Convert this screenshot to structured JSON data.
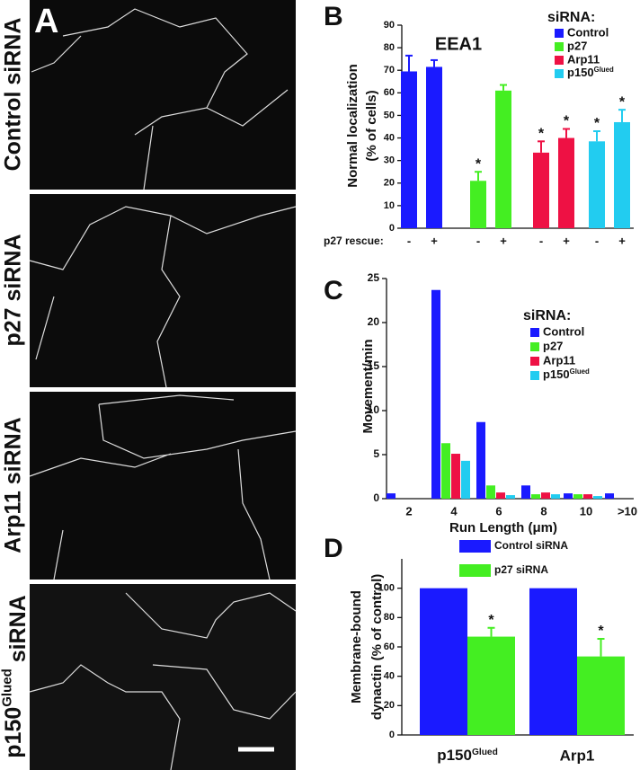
{
  "panel_a": {
    "label": "A",
    "rows": [
      "Control siRNA",
      "p27 siRNA",
      "Arp11 siRNA",
      "p150Glued siRNA"
    ]
  },
  "chart_data": [
    {
      "type": "bar",
      "panel": "B",
      "group_by": "series",
      "title": "EEA1",
      "ylabel": [
        "Normal localization",
        "(% of cells)"
      ],
      "x_label": "p27 rescue:",
      "categories": [
        "-",
        "+"
      ],
      "ylim": [
        0,
        90
      ],
      "yticks": [
        0,
        10,
        20,
        30,
        40,
        50,
        60,
        70,
        80,
        90
      ],
      "legend_title": "siRNA:",
      "significance_label": "*",
      "series": [
        {
          "name": "Control",
          "color": "#1a1aff",
          "values": [
            69.5,
            71.5
          ],
          "errors": [
            7,
            3
          ],
          "significant": [
            false,
            false
          ]
        },
        {
          "name": "p27",
          "color": "#44ee22",
          "values": [
            21,
            61
          ],
          "errors": [
            4,
            2.5
          ],
          "significant": [
            true,
            false
          ]
        },
        {
          "name": "Arp11",
          "color": "#ee1144",
          "values": [
            33.5,
            40
          ],
          "errors": [
            5,
            4
          ],
          "significant": [
            true,
            true
          ]
        },
        {
          "name": "p150Glued",
          "color": "#22ccf0",
          "values": [
            38.5,
            47
          ],
          "errors": [
            4.5,
            5.5
          ],
          "significant": [
            true,
            true
          ]
        }
      ]
    },
    {
      "type": "bar",
      "panel": "C",
      "group_by": "category",
      "ylabel": [
        "Movement/min"
      ],
      "xlabel": "Run Length (μm)",
      "categories": [
        "2",
        "4",
        "6",
        "8",
        "10",
        ">10"
      ],
      "ylim": [
        0,
        25
      ],
      "yticks": [
        0,
        5,
        10,
        15,
        20,
        25
      ],
      "legend_title": "siRNA:",
      "series": [
        {
          "name": "Control",
          "color": "#1a1aff",
          "values": [
            0.6,
            23.7,
            8.7,
            1.5,
            0.6,
            0.6
          ]
        },
        {
          "name": "p27",
          "color": "#44ee22",
          "values": [
            0,
            6.3,
            1.5,
            0.5,
            0.5,
            0
          ]
        },
        {
          "name": "Arp11",
          "color": "#ee1144",
          "values": [
            0,
            5.1,
            0.7,
            0.7,
            0.5,
            0
          ]
        },
        {
          "name": "p150Glued",
          "color": "#22ccf0",
          "values": [
            0,
            4.3,
            0.4,
            0.5,
            0.3,
            0
          ]
        }
      ]
    },
    {
      "type": "bar",
      "panel": "D",
      "group_by": "category",
      "ylabel": [
        "Membrane-bound",
        "dynactin (% of control)"
      ],
      "categories": [
        "p150Glued",
        "Arp1"
      ],
      "ylim": [
        0,
        120
      ],
      "yticks": [
        0,
        20,
        40,
        60,
        80,
        100
      ],
      "significance_label": "*",
      "series": [
        {
          "name": "Control siRNA",
          "color": "#1a1aff",
          "values": [
            100,
            100
          ]
        },
        {
          "name": "p27 siRNA",
          "color": "#44ee22",
          "values": [
            67,
            53.5
          ],
          "errors": [
            6,
            12
          ],
          "significant": [
            true,
            true
          ]
        }
      ]
    }
  ]
}
